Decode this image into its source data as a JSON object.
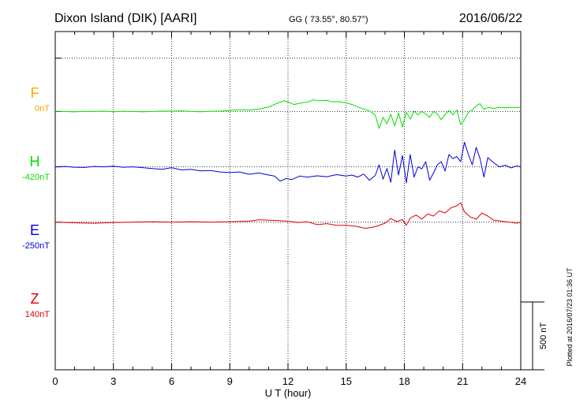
{
  "header": {
    "station": "Dixon Island (DIK)  [AARI]",
    "coords": "GG ( 73.55°,  80.57°)",
    "date": "2016/06/22"
  },
  "footer": {
    "plotted": "Plotted at 2016/07/23 01:36 UT"
  },
  "scale_label": "500 nT",
  "colors": {
    "F": "#ffa500",
    "H": "#00e000",
    "E": "#0000dd",
    "Z": "#e00000",
    "axis": "#000000"
  },
  "chart_data": {
    "type": "line",
    "xlabel": "U T (hour)",
    "xlim": [
      0,
      24
    ],
    "x_ticks": [
      "0",
      "3",
      "6",
      "9",
      "12",
      "15",
      "18",
      "21",
      "24"
    ],
    "scale_bar_nT": 500,
    "ylim_nT": [
      -720,
      930
    ],
    "series": [
      {
        "name": "F",
        "baseline": "0nT",
        "offset_nT": 800,
        "x": [],
        "values": []
      },
      {
        "name": "H",
        "baseline": "-420nT",
        "offset_nT": 540,
        "x": [
          0,
          0.5,
          1,
          1.5,
          2,
          2.5,
          3,
          3.5,
          4,
          4.5,
          5,
          5.5,
          6,
          6.5,
          7,
          7.5,
          8,
          8.5,
          9,
          9.5,
          10,
          10.5,
          11,
          11.5,
          11.8,
          12,
          12.3,
          12.5,
          12.8,
          13,
          13.3,
          13.6,
          14,
          14.3,
          14.6,
          15,
          15.3,
          15.6,
          15.9,
          16.2,
          16.5,
          16.7,
          16.9,
          17.1,
          17.3,
          17.5,
          17.7,
          17.9,
          18.1,
          18.3,
          18.5,
          18.7,
          18.9,
          19.1,
          19.3,
          19.5,
          19.7,
          19.9,
          20.1,
          20.3,
          20.5,
          20.7,
          20.9,
          21.1,
          21.3,
          21.5,
          21.7,
          21.9,
          22.1,
          22.3,
          22.6,
          22.9,
          23.2,
          23.5,
          23.8,
          24
        ],
        "values": [
          1,
          0,
          -2,
          1,
          0,
          2,
          -1,
          1,
          0,
          -1,
          0,
          2,
          1,
          3,
          0,
          -1,
          1,
          2,
          5,
          9,
          7,
          12,
          22,
          42,
          52,
          46,
          34,
          38,
          44,
          45,
          57,
          52,
          54,
          47,
          49,
          42,
          34,
          22,
          12,
          4,
          -18,
          -82,
          -28,
          -60,
          -14,
          -70,
          -7,
          -76,
          -3,
          -38,
          2,
          -17,
          0,
          -12,
          -28,
          0,
          -12,
          -40,
          -15,
          5,
          -16,
          8,
          -64,
          -40,
          -4,
          7,
          28,
          38,
          10,
          20,
          15,
          20,
          18,
          20,
          20,
          20
        ]
      },
      {
        "name": "E",
        "baseline": "-250nT",
        "offset_nT": 270,
        "x": [
          0,
          0.5,
          1,
          1.5,
          2,
          2.5,
          3,
          3.5,
          4,
          4.5,
          5,
          5.5,
          6,
          6.5,
          7,
          7.5,
          8,
          8.5,
          9,
          9.5,
          10,
          10.5,
          11,
          11.3,
          11.6,
          11.9,
          12.2,
          12.6,
          13,
          13.5,
          14,
          14.5,
          15,
          15.3,
          15.6,
          15.9,
          16.2,
          16.5,
          16.7,
          16.9,
          17.1,
          17.3,
          17.5,
          17.7,
          17.9,
          18.1,
          18.3,
          18.5,
          18.7,
          18.9,
          19.1,
          19.3,
          19.5,
          19.7,
          19.9,
          20.1,
          20.3,
          20.5,
          20.7,
          20.9,
          21.1,
          21.3,
          21.5,
          21.7,
          21.9,
          22.1,
          22.3,
          22.6,
          22.9,
          23.2,
          23.5,
          23.8,
          24
        ],
        "values": [
          0,
          2,
          -2,
          -3,
          2,
          0,
          3,
          -2,
          0,
          -4,
          -8,
          -12,
          -4,
          -15,
          -12,
          -20,
          -18,
          -25,
          -28,
          -25,
          -36,
          -30,
          -40,
          -45,
          -70,
          -57,
          -62,
          -45,
          -50,
          -44,
          -48,
          -38,
          -45,
          -40,
          -50,
          -35,
          -65,
          -42,
          10,
          -60,
          -8,
          -75,
          82,
          -40,
          55,
          -78,
          60,
          -50,
          0,
          -10,
          25,
          -65,
          -30,
          10,
          25,
          -20,
          60,
          40,
          50,
          25,
          120,
          60,
          10,
          95,
          40,
          -50,
          45,
          20,
          0,
          8,
          -5,
          5,
          0
        ]
      },
      {
        "name": "Z",
        "baseline": "140nT",
        "offset_nT": 0,
        "x": [
          0,
          1,
          2,
          3,
          4,
          5,
          6,
          7,
          8,
          9,
          10,
          10.5,
          11,
          11.5,
          12,
          12.5,
          13,
          13.5,
          14,
          14.5,
          15,
          15.5,
          16,
          16.5,
          17,
          17.3,
          17.6,
          17.9,
          18.1,
          18.3,
          18.6,
          18.9,
          19.2,
          19.5,
          19.8,
          20.1,
          20.4,
          20.7,
          20.9,
          21.1,
          21.4,
          21.7,
          22,
          22.3,
          22.6,
          23,
          23.4,
          23.8,
          24
        ],
        "values": [
          0,
          -3,
          -5,
          -2,
          0,
          2,
          0,
          2,
          0,
          2,
          5,
          12,
          10,
          8,
          5,
          -2,
          2,
          -12,
          -7,
          -15,
          -15,
          -20,
          -30,
          -22,
          -5,
          18,
          3,
          13,
          -15,
          20,
          35,
          15,
          40,
          30,
          55,
          45,
          70,
          80,
          95,
          50,
          25,
          15,
          45,
          30,
          10,
          5,
          0,
          -5,
          0
        ]
      }
    ]
  }
}
